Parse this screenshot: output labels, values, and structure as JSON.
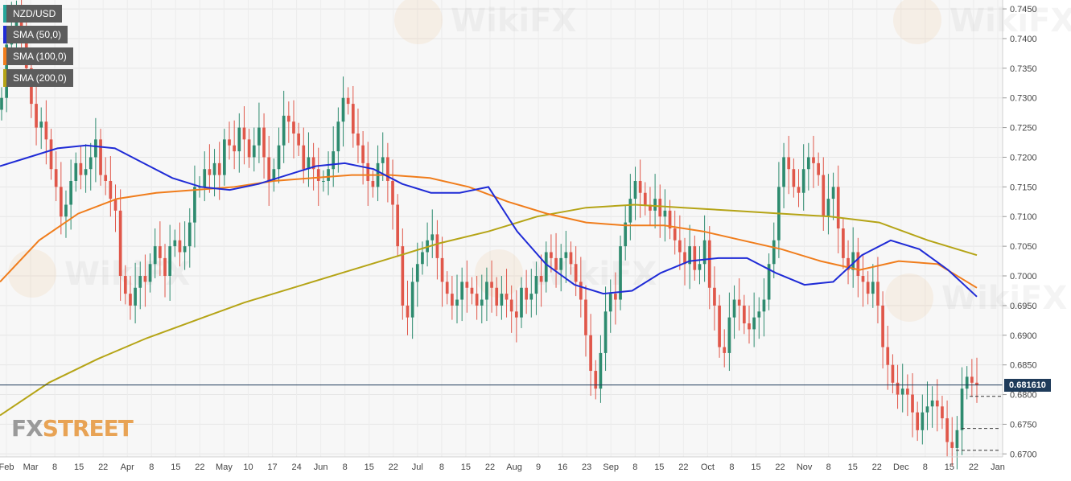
{
  "chart_data": {
    "type": "candlestick",
    "pair": "NZD/USD",
    "legend": [
      {
        "label": "NZD/USD",
        "color": "#26a69a"
      },
      {
        "label": "SMA (50,0)",
        "color": "#1f2bd6"
      },
      {
        "label": "SMA (100,0)",
        "color": "#f07d1c"
      },
      {
        "label": "SMA (200,0)",
        "color": "#b5a416"
      }
    ],
    "y_ticks": [
      "0.7450",
      "0.7400",
      "0.7350",
      "0.7300",
      "0.7250",
      "0.7200",
      "0.7150",
      "0.7100",
      "0.7050",
      "0.7000",
      "0.6950",
      "0.6900",
      "0.6850",
      "0.6800",
      "0.6750",
      "0.6700"
    ],
    "ylim": [
      0.6695,
      0.7465
    ],
    "x_ticks": [
      "Feb",
      "Mar",
      "8",
      "15",
      "22",
      "Apr",
      "8",
      "15",
      "22",
      "May",
      "10",
      "17",
      "24",
      "Jun",
      "8",
      "15",
      "22",
      "Jul",
      "8",
      "15",
      "22",
      "Aug",
      "9",
      "16",
      "23",
      "Sep",
      "8",
      "15",
      "22",
      "Oct",
      "8",
      "15",
      "22",
      "Nov",
      "8",
      "15",
      "22",
      "Dec",
      "8",
      "15",
      "22",
      "Jan"
    ],
    "current_price": 0.68161,
    "current_price_label": "0.681610",
    "candle_colors": {
      "up": "#2e8b6f",
      "down": "#e0574a"
    },
    "closes": [
      0.73,
      0.739,
      0.742,
      0.744,
      0.742,
      0.735,
      0.729,
      0.725,
      0.726,
      0.723,
      0.718,
      0.715,
      0.71,
      0.712,
      0.716,
      0.719,
      0.717,
      0.718,
      0.72,
      0.723,
      0.717,
      0.716,
      0.713,
      0.711,
      0.7,
      0.697,
      0.695,
      0.698,
      0.7,
      0.699,
      0.702,
      0.705,
      0.703,
      0.7,
      0.705,
      0.706,
      0.704,
      0.705,
      0.709,
      0.715,
      0.715,
      0.718,
      0.717,
      0.719,
      0.717,
      0.723,
      0.722,
      0.721,
      0.725,
      0.723,
      0.72,
      0.722,
      0.725,
      0.72,
      0.716,
      0.718,
      0.722,
      0.727,
      0.726,
      0.724,
      0.722,
      0.718,
      0.72,
      0.718,
      0.716,
      0.716,
      0.718,
      0.721,
      0.726,
      0.73,
      0.729,
      0.724,
      0.722,
      0.719,
      0.716,
      0.715,
      0.719,
      0.72,
      0.716,
      0.712,
      0.705,
      0.695,
      0.693,
      0.699,
      0.702,
      0.704,
      0.706,
      0.707,
      0.703,
      0.699,
      0.697,
      0.695,
      0.696,
      0.699,
      0.698,
      0.697,
      0.695,
      0.696,
      0.699,
      0.698,
      0.695,
      0.697,
      0.696,
      0.694,
      0.693,
      0.698,
      0.696,
      0.697,
      0.7,
      0.699,
      0.704,
      0.703,
      0.701,
      0.703,
      0.704,
      0.702,
      0.699,
      0.696,
      0.69,
      0.684,
      0.681,
      0.687,
      0.694,
      0.697,
      0.696,
      0.705,
      0.709,
      0.713,
      0.716,
      0.714,
      0.712,
      0.711,
      0.713,
      0.71,
      0.711,
      0.708,
      0.706,
      0.704,
      0.702,
      0.705,
      0.701,
      0.702,
      0.706,
      0.698,
      0.695,
      0.688,
      0.687,
      0.693,
      0.696,
      0.695,
      0.692,
      0.691,
      0.693,
      0.694,
      0.696,
      0.702,
      0.706,
      0.715,
      0.72,
      0.718,
      0.715,
      0.714,
      0.718,
      0.72,
      0.719,
      0.717,
      0.71,
      0.713,
      0.715,
      0.708,
      0.703,
      0.701,
      0.704,
      0.7,
      0.699,
      0.697,
      0.699,
      0.695,
      0.688,
      0.685,
      0.682,
      0.68,
      0.681,
      0.68,
      0.677,
      0.674,
      0.677,
      0.678,
      0.679,
      0.678,
      0.676,
      0.672,
      0.671,
      0.674,
      0.681,
      0.683,
      0.682,
      0.6816
    ],
    "sma50": [
      0.7185,
      0.72,
      0.7215,
      0.722,
      0.7215,
      0.719,
      0.7165,
      0.715,
      0.7145,
      0.7155,
      0.717,
      0.7185,
      0.719,
      0.718,
      0.7155,
      0.714,
      0.714,
      0.715,
      0.7075,
      0.702,
      0.6985,
      0.697,
      0.6975,
      0.7005,
      0.7025,
      0.703,
      0.703,
      0.7005,
      0.6985,
      0.699,
      0.7035,
      0.706,
      0.7045,
      0.701,
      0.6965
    ],
    "sma100": [
      0.699,
      0.706,
      0.7105,
      0.713,
      0.714,
      0.7145,
      0.715,
      0.716,
      0.7165,
      0.717,
      0.717,
      0.7165,
      0.715,
      0.7125,
      0.7105,
      0.709,
      0.7085,
      0.7085,
      0.7075,
      0.706,
      0.7045,
      0.7025,
      0.701,
      0.7025,
      0.702,
      0.698
    ],
    "sma200": [
      0.6765,
      0.682,
      0.686,
      0.6895,
      0.6925,
      0.6955,
      0.698,
      0.7005,
      0.703,
      0.7055,
      0.7075,
      0.71,
      0.7115,
      0.712,
      0.7115,
      0.711,
      0.7105,
      0.71,
      0.709,
      0.706,
      0.7035
    ]
  }
}
